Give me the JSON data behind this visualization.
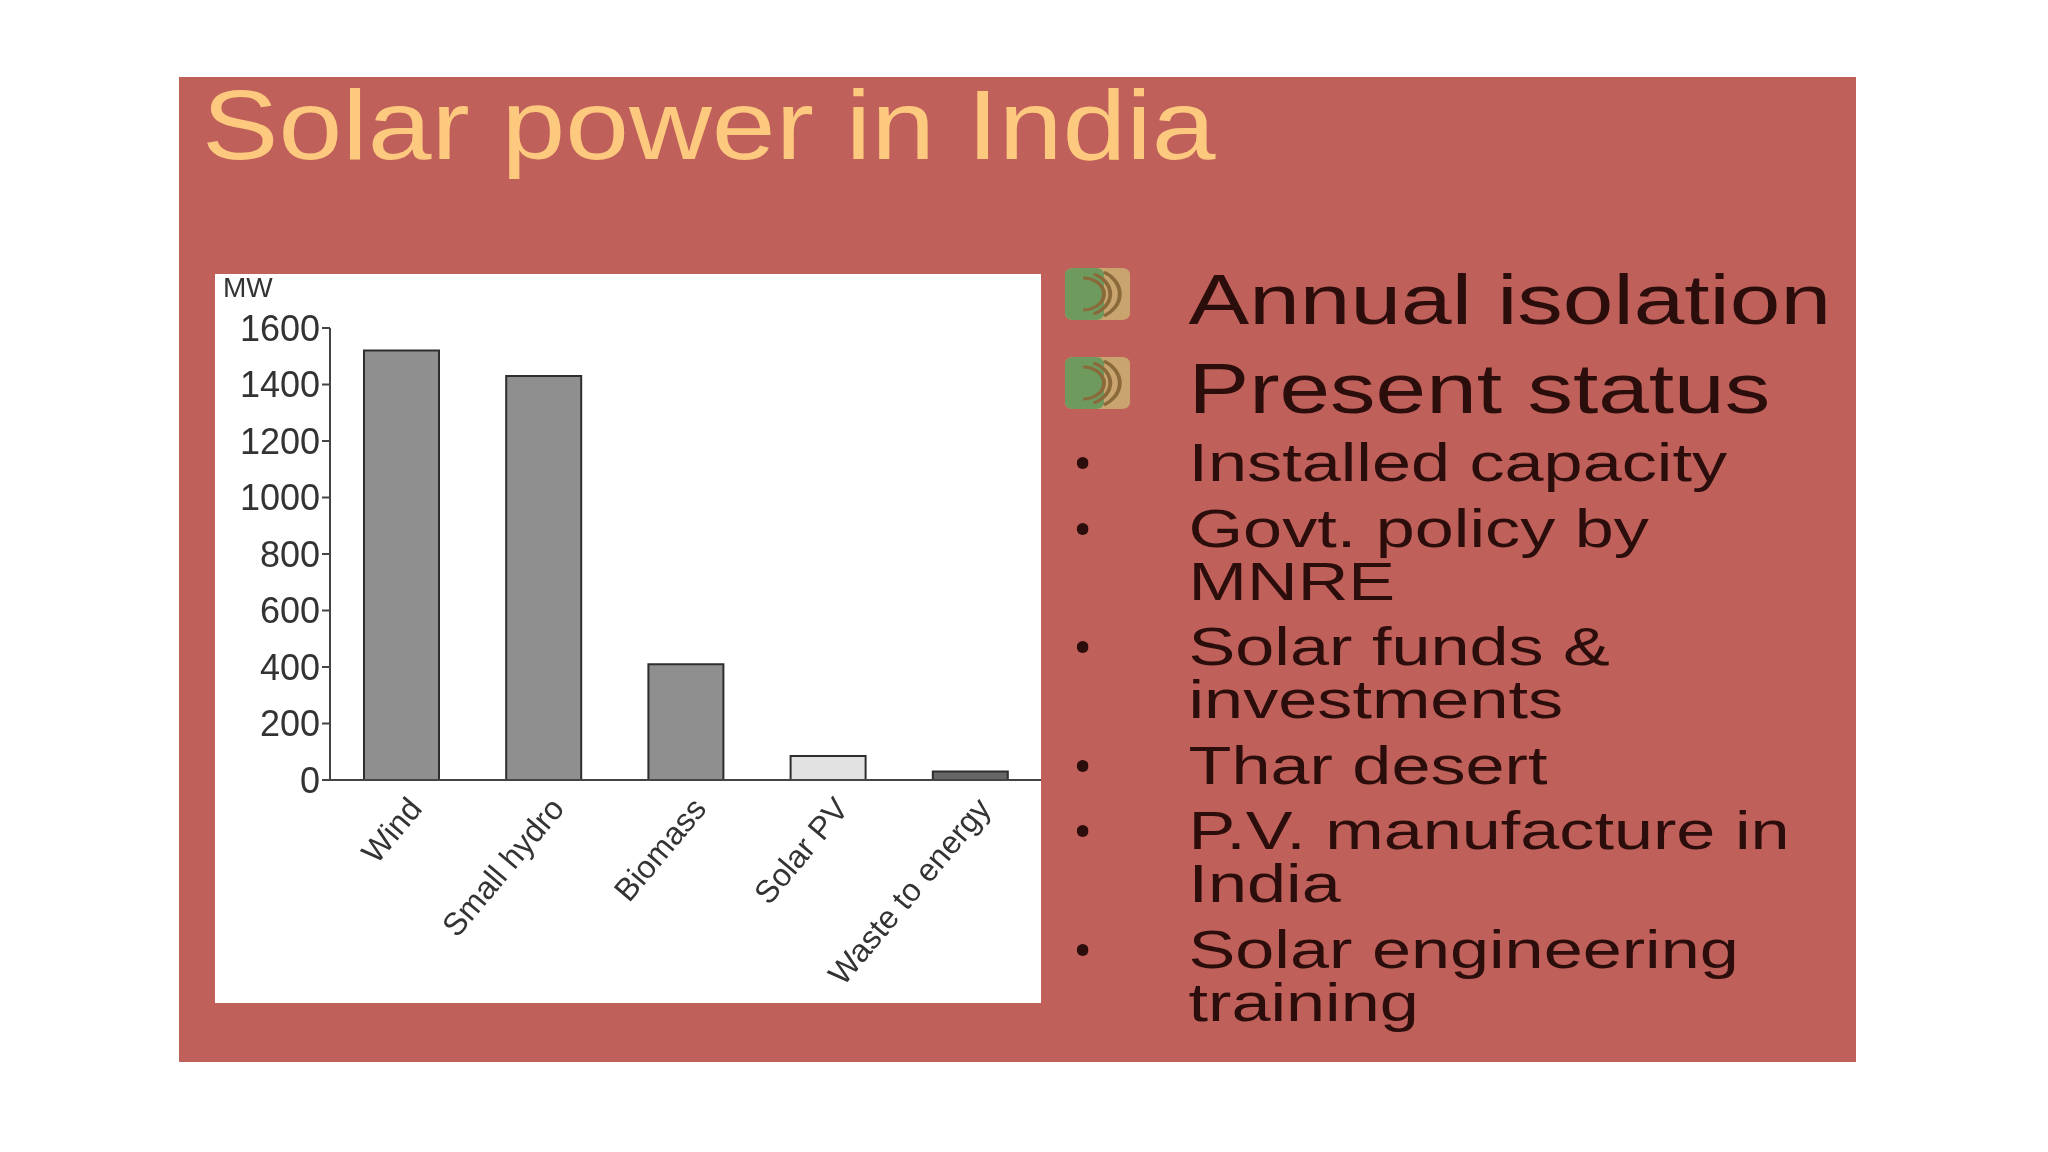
{
  "chart_data": {
    "type": "bar",
    "title": "Solar power in India",
    "ylabel": "MW",
    "categories": [
      "Wind",
      "Small hydro",
      "Biomass",
      "Solar PV",
      "Waste to energy"
    ],
    "values": [
      1520,
      1430,
      410,
      85,
      30
    ],
    "colors": [
      "#8f8f8f",
      "#8f8f8f",
      "#8f8f8f",
      "#e2e2e2",
      "#666666"
    ],
    "ylim": [
      0,
      1600
    ],
    "yticks": [
      0,
      200,
      400,
      600,
      800,
      1000,
      1200,
      1400,
      1600
    ],
    "annotations": [
      "Annual isolation",
      "Present status",
      "Installed capacity",
      "Govt. policy by MNRE",
      "Solar funds & investments",
      "Thar desert",
      "P.V. manufacture in India",
      "Solar engineering training"
    ]
  }
}
